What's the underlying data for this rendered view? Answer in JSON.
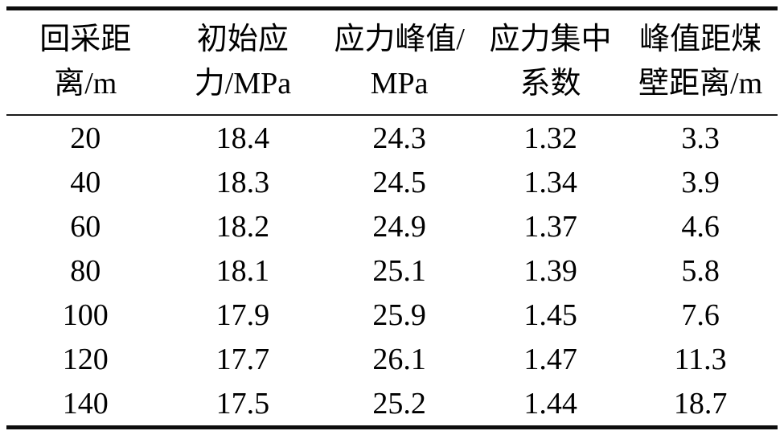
{
  "table": {
    "columns": [
      {
        "line1": "回采距",
        "line2": "离/m"
      },
      {
        "line1": "初始应",
        "line2": "力/MPa"
      },
      {
        "line1": "应力峰值/",
        "line2": "MPa"
      },
      {
        "line1": "应力集中",
        "line2": "系数"
      },
      {
        "line1": "峰值距煤",
        "line2": "壁距离/m"
      }
    ],
    "rows": [
      [
        "20",
        "18.4",
        "24.3",
        "1.32",
        "3.3"
      ],
      [
        "40",
        "18.3",
        "24.5",
        "1.34",
        "3.9"
      ],
      [
        "60",
        "18.2",
        "24.9",
        "1.37",
        "4.6"
      ],
      [
        "80",
        "18.1",
        "25.1",
        "1.39",
        "5.8"
      ],
      [
        "100",
        "17.9",
        "25.9",
        "1.45",
        "7.6"
      ],
      [
        "120",
        "17.7",
        "26.1",
        "1.47",
        "11.3"
      ],
      [
        "140",
        "17.5",
        "25.2",
        "1.44",
        "18.7"
      ]
    ]
  },
  "chart_data": {
    "type": "table",
    "title": "",
    "columns": [
      "回采距离/m",
      "初始应力/MPa",
      "应力峰值/MPa",
      "应力集中系数",
      "峰值距煤壁距离/m"
    ],
    "rows": [
      [
        20,
        18.4,
        24.3,
        1.32,
        3.3
      ],
      [
        40,
        18.3,
        24.5,
        1.34,
        3.9
      ],
      [
        60,
        18.2,
        24.9,
        1.37,
        4.6
      ],
      [
        80,
        18.1,
        25.1,
        1.39,
        5.8
      ],
      [
        100,
        17.9,
        25.9,
        1.45,
        7.6
      ],
      [
        120,
        17.7,
        26.1,
        1.47,
        11.3
      ],
      [
        140,
        17.5,
        25.2,
        1.44,
        18.7
      ]
    ]
  },
  "colors": {
    "text": "#000000",
    "rule_heavy": "#0d0d0d",
    "rule_light": "#1a1a1a",
    "background": "#ffffff"
  }
}
